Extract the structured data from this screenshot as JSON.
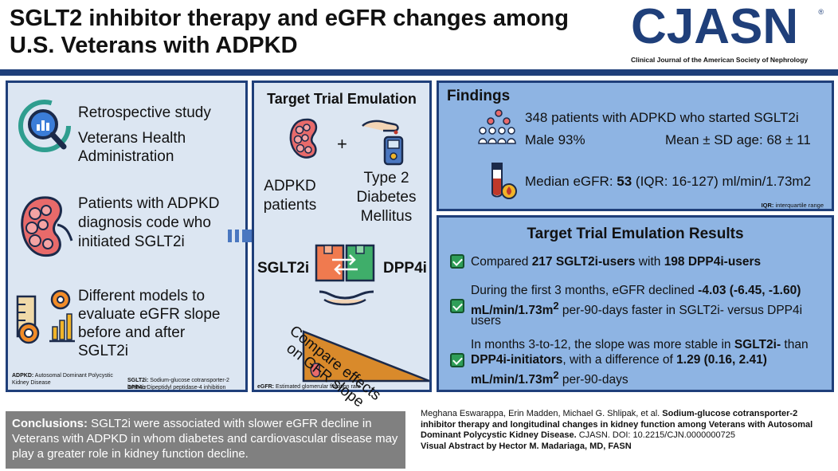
{
  "header": {
    "title": "SGLT2 inhibitor therapy and eGFR changes among U.S. Veterans with ADPKD",
    "logo_text": "CJASN",
    "logo_registered": "®",
    "logo_subtitle": "Clinical Journal of the American Society of Nephrology",
    "brand_color": "#1f3f7a"
  },
  "design": {
    "items": [
      {
        "icon": "magnifier-chart-icon",
        "lines": [
          "Retrospective study",
          "Veterans Health",
          "Administration"
        ]
      },
      {
        "icon": "kidney-icon",
        "lines": [
          "Patients with ADPKD",
          "diagnosis code who",
          "initiated SGLT2i"
        ]
      },
      {
        "icon": "measurement-tools-icon",
        "lines": [
          "Different models to",
          "evaluate eGFR slope",
          "before and after",
          "SGLT2i"
        ]
      }
    ],
    "footnotes": {
      "adpkd_abbr": "ADPKD:",
      "adpkd_def": "Autosomal Dominant Polycystic Kidney Disease",
      "sglt2i_abbr": "SGLT2i:",
      "sglt2i_def": "Sodium-glucose cotransporter-2 inhibitor",
      "dpp4i_abbr": "DPP4i:",
      "dpp4i_def": "Dipeptidyl peptidase-4 inhibition"
    }
  },
  "emulation": {
    "heading": "Target Trial Emulation",
    "plus": "+",
    "population_left": [
      "ADPKD",
      "patients"
    ],
    "population_right": [
      "Type 2",
      "Diabetes",
      "Mellitus"
    ],
    "arm_left": "SGLT2i",
    "arm_right": "DPP4i",
    "compare_lines": [
      "Compare effects",
      "on GFR slope"
    ],
    "footnote_abbr": "eGFR:",
    "footnote_def": "Estimated glomerular filtration rate"
  },
  "findings": {
    "heading": "Findings",
    "patients": "348 patients with ADPKD who started SGLT2i",
    "male": "Male 93%",
    "age": "Mean ± SD age: 68 ± 11",
    "egfr_prefix": "Median eGFR: ",
    "egfr_value": "53",
    "egfr_suffix": " (IQR: 16-127) ml/min/1.73m2",
    "iqr_abbr": "IQR:",
    "iqr_def": "interquartile range"
  },
  "results": {
    "heading": "Target Trial Emulation Results",
    "r1": {
      "pre": "Compared ",
      "b1": "217 SGLT2i-users",
      "mid": " with ",
      "b2": "198 DPP4i-users"
    },
    "r2": {
      "l1a": "During the first 3 months, eGFR declined ",
      "l1b": "-4.03 (-6.45, -1.60)",
      "l2b": "mL/min/1.73m",
      "sup": "2",
      "l2a": " per-90-days faster in SGLT2i- versus DPP4i",
      "l3": "users"
    },
    "r3": {
      "l1a": "In months 3-to-12, the slope was more stable in ",
      "l1b": "SGLT2i-",
      "l1c": " than",
      "l2b": "DPP4i-initiators",
      "l2a": ", with a difference of ",
      "l2c": "1.29 (0.16, 2.41)",
      "l3b": "mL/min/1.73m",
      "sup": "2",
      "l3a": " per-90-days"
    }
  },
  "conclusions": {
    "label": "Conclusions:",
    "text": " SGLT2i were associated with slower eGFR decline in Veterans with ADPKD in whom diabetes and cardiovascular disease may play a greater role in kidney function decline."
  },
  "citation": {
    "authors": "Meghana Eswarappa, Erin Madden, Michael G. Shlipak, et al. ",
    "title": "Sodium-glucose cotransporter-2 inhibitor therapy and longitudinal changes in kidney function among Veterans with Autosomal Dominant Polycystic Kidney Disease.",
    "journal": " CJASN. DOI: 10.2215/CJN.0000000725",
    "credit": "Visual Abstract by Hector M. Madariaga, MD, FASN"
  }
}
